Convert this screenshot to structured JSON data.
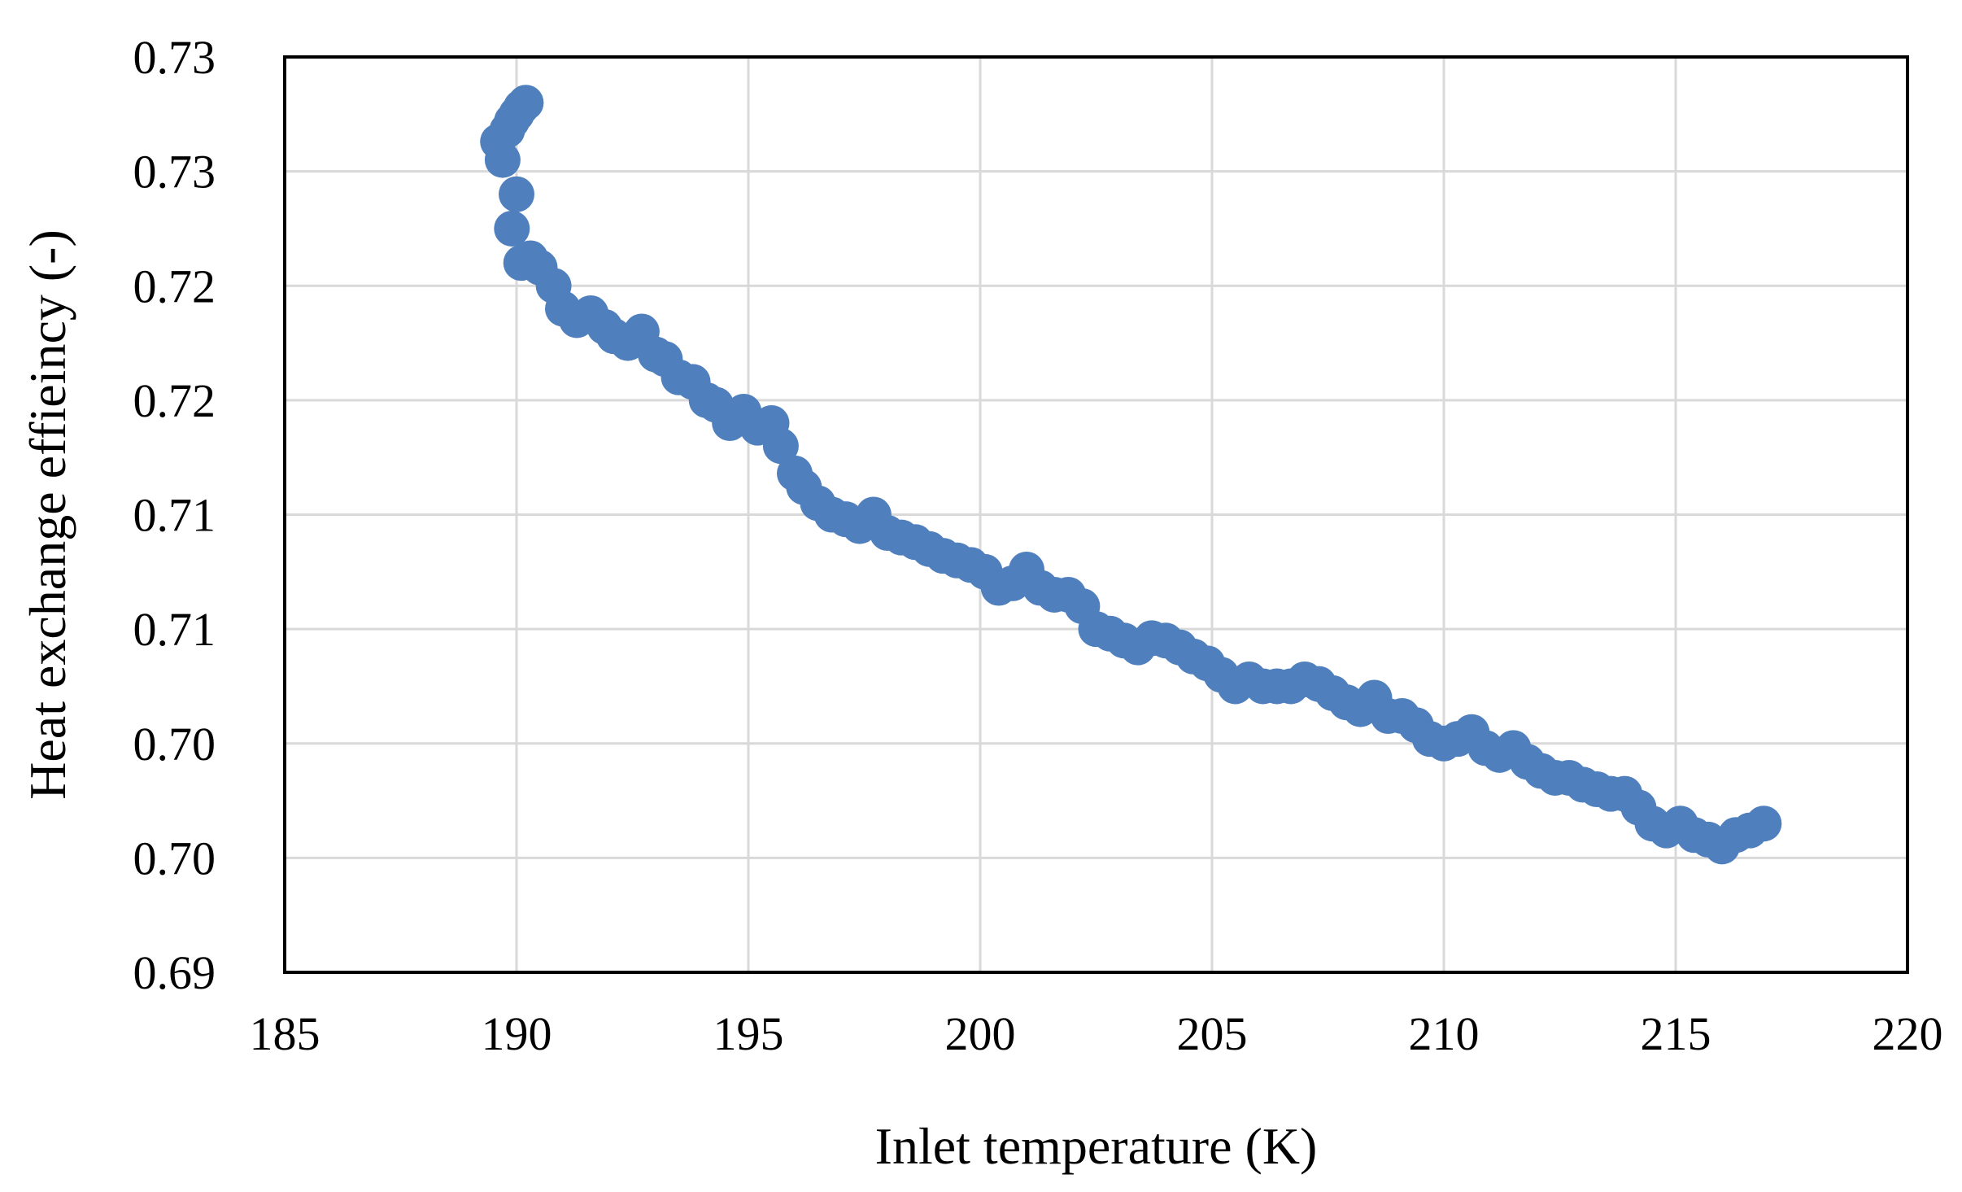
{
  "chart_data": {
    "type": "scatter",
    "title": "",
    "xlabel": "Inlet temperature (K)",
    "ylabel": "Heat exchange effieincy (-)",
    "xlim": [
      185,
      220
    ],
    "ylim": [
      0.69,
      0.73
    ],
    "grid": true,
    "legend": "none",
    "x_ticks": [
      {
        "value": 185,
        "label": "185"
      },
      {
        "value": 190,
        "label": "190"
      },
      {
        "value": 195,
        "label": "195"
      },
      {
        "value": 200,
        "label": "200"
      },
      {
        "value": 205,
        "label": "205"
      },
      {
        "value": 210,
        "label": "210"
      },
      {
        "value": 215,
        "label": "215"
      },
      {
        "value": 220,
        "label": "220"
      }
    ],
    "y_ticks": [
      {
        "value": 0.69,
        "label": "0.69"
      },
      {
        "value": 0.695,
        "label": "0.70"
      },
      {
        "value": 0.7,
        "label": "0.70"
      },
      {
        "value": 0.705,
        "label": "0.71"
      },
      {
        "value": 0.71,
        "label": "0.71"
      },
      {
        "value": 0.715,
        "label": "0.72"
      },
      {
        "value": 0.72,
        "label": "0.72"
      },
      {
        "value": 0.725,
        "label": "0.73"
      },
      {
        "value": 0.73,
        "label": "0.73"
      }
    ],
    "series": [
      {
        "name": "Heat exchange efficiency",
        "color": "#4f7fbd",
        "x": [
          189.6,
          189.7,
          189.8,
          189.9,
          190.0,
          190.1,
          190.2,
          190.0,
          189.9,
          190.1,
          190.3,
          190.5,
          190.8,
          191.0,
          191.3,
          191.6,
          191.9,
          192.1,
          192.4,
          192.7,
          193.0,
          193.2,
          193.5,
          193.8,
          194.1,
          194.3,
          194.6,
          194.9,
          195.2,
          195.5,
          195.7,
          196.0,
          196.2,
          196.5,
          196.8,
          197.1,
          197.4,
          197.7,
          198.0,
          198.3,
          198.6,
          198.9,
          199.2,
          199.5,
          199.8,
          200.1,
          200.4,
          200.7,
          201.0,
          201.3,
          201.6,
          201.9,
          202.2,
          202.5,
          202.8,
          203.1,
          203.4,
          203.7,
          204.0,
          204.3,
          204.6,
          204.9,
          205.2,
          205.5,
          205.8,
          206.1,
          206.4,
          206.7,
          207.0,
          207.3,
          207.6,
          207.9,
          208.2,
          208.5,
          208.8,
          209.1,
          209.4,
          209.7,
          210.0,
          210.3,
          210.6,
          210.9,
          211.2,
          211.5,
          211.8,
          212.1,
          212.4,
          212.7,
          213.0,
          213.3,
          213.6,
          213.9,
          214.2,
          214.5,
          214.8,
          215.1,
          215.4,
          215.7,
          216.0,
          216.3,
          216.6,
          216.9
        ],
        "y": [
          0.7263,
          0.7255,
          0.7268,
          0.7272,
          0.7275,
          0.7278,
          0.728,
          0.724,
          0.7225,
          0.721,
          0.7212,
          0.7208,
          0.72,
          0.719,
          0.7185,
          0.7188,
          0.7182,
          0.7178,
          0.7175,
          0.718,
          0.717,
          0.7168,
          0.716,
          0.7158,
          0.715,
          0.7148,
          0.714,
          0.7145,
          0.7138,
          0.714,
          0.713,
          0.7118,
          0.7112,
          0.7105,
          0.71,
          0.7098,
          0.7095,
          0.71,
          0.7092,
          0.709,
          0.7088,
          0.7085,
          0.7082,
          0.708,
          0.7078,
          0.7075,
          0.7068,
          0.707,
          0.7076,
          0.7068,
          0.7065,
          0.7065,
          0.706,
          0.705,
          0.7048,
          0.7045,
          0.7042,
          0.7046,
          0.7045,
          0.7042,
          0.7038,
          0.7035,
          0.703,
          0.7025,
          0.7028,
          0.7025,
          0.7025,
          0.7025,
          0.7028,
          0.7026,
          0.7022,
          0.7018,
          0.7015,
          0.702,
          0.7012,
          0.7012,
          0.7008,
          0.7002,
          0.7,
          0.7002,
          0.7005,
          0.6998,
          0.6995,
          0.6998,
          0.6992,
          0.6988,
          0.6985,
          0.6985,
          0.6982,
          0.698,
          0.6978,
          0.6978,
          0.6972,
          0.6965,
          0.6962,
          0.6965,
          0.696,
          0.6958,
          0.6955,
          0.696,
          0.6962,
          0.6965
        ]
      }
    ]
  }
}
